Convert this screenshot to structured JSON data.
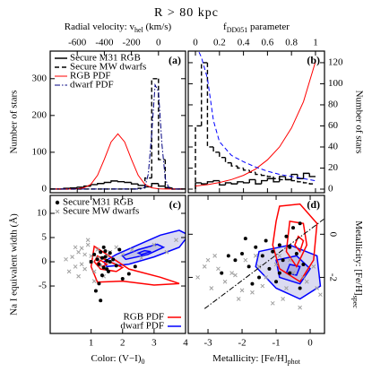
{
  "figure": {
    "title": "R > 80 kpc"
  },
  "chart_data": [
    {
      "type": "histogram",
      "label": "(a)",
      "xlabel": [
        "Radial velocity: v",
        "hel",
        " (km/s)"
      ],
      "xaxis": "top",
      "ylabel": "Number of stars",
      "yaxis": "left",
      "xlim": [
        -800,
        200
      ],
      "xticks": [
        -600,
        -400,
        -200,
        0
      ],
      "ylim": [
        -10,
        375
      ],
      "yticks": [
        0,
        100,
        200,
        300
      ],
      "bins": [
        -800,
        -750,
        -700,
        -650,
        -600,
        -550,
        -500,
        -450,
        -400,
        -350,
        -300,
        -250,
        -200,
        -150,
        -100,
        -50,
        0,
        50,
        100,
        150,
        200
      ],
      "series": [
        {
          "name": "Secure M31 RGB",
          "color": "#000000",
          "style": "solid",
          "counts": [
            0,
            0,
            2,
            3,
            5,
            8,
            12,
            15,
            18,
            22,
            20,
            18,
            14,
            10,
            6,
            15,
            8,
            3,
            0,
            0
          ]
        },
        {
          "name": "Secure MW dwarfs",
          "color": "#000000",
          "style": "dashed",
          "counts": [
            0,
            0,
            0,
            0,
            0,
            0,
            0,
            0,
            0,
            0,
            0,
            0,
            0,
            2,
            30,
            300,
            80,
            4,
            0,
            0
          ]
        }
      ],
      "curves": [
        {
          "name": "RGB PDF",
          "color": "#ff0000",
          "style": "solid",
          "x": [
            -800,
            -750,
            -700,
            -650,
            -600,
            -550,
            -500,
            -450,
            -400,
            -350,
            -300,
            -250,
            -200,
            -150,
            -100,
            -50,
            0,
            50,
            100,
            150,
            200
          ],
          "values": [
            0,
            0,
            0,
            0.1,
            0.6,
            3.3,
            12.7,
            37.4,
            81,
            128,
            150,
            128,
            81,
            37.4,
            12.7,
            3.3,
            0.6,
            0.1,
            0,
            0,
            0
          ]
        },
        {
          "name": "dwarf PDF",
          "color": "#000080",
          "style": "dashdot",
          "x": [
            -800,
            -200,
            -150,
            -125,
            -100,
            -75,
            -50,
            -25,
            0,
            25,
            50,
            75,
            100,
            150,
            200
          ],
          "values": [
            0,
            0,
            0,
            0.4,
            5.5,
            41,
            151,
            283,
            265,
            124,
            29,
            3.3,
            0.2,
            0,
            0
          ]
        }
      ],
      "legend": "upper-left"
    },
    {
      "type": "histogram",
      "label": "(b)",
      "xlabel": [
        "f",
        "DD051",
        " parameter"
      ],
      "xaxis": "top",
      "ylabel": "Number of stars",
      "yaxis": "right",
      "xlim": [
        -0.06,
        1.075
      ],
      "xticks": [
        0,
        0.2,
        0.4,
        0.6,
        0.8,
        1
      ],
      "ylim": [
        -3.4,
        131
      ],
      "yticks": [
        0,
        20,
        40,
        60,
        80,
        100,
        120
      ],
      "bins": [
        0,
        0.05,
        0.1,
        0.15,
        0.2,
        0.25,
        0.3,
        0.35,
        0.4,
        0.45,
        0.5,
        0.55,
        0.6,
        0.65,
        0.7,
        0.75,
        0.8,
        0.85,
        0.9,
        0.95,
        1
      ],
      "series": [
        {
          "color": "#000000",
          "style": "solid",
          "counts": [
            6,
            5,
            7,
            8,
            4,
            6,
            5,
            7,
            6,
            9,
            5,
            8,
            10,
            7,
            12,
            9,
            14,
            10,
            15,
            12
          ]
        },
        {
          "color": "#000000",
          "style": "dashed",
          "counts": [
            60,
            120,
            40,
            35,
            30,
            25,
            22,
            20,
            18,
            16,
            14,
            13,
            12,
            10,
            9,
            9,
            8,
            7,
            6,
            5
          ]
        }
      ],
      "curves": [
        {
          "color": "#ff0000",
          "style": "solid",
          "x": [
            0,
            0.1,
            0.2,
            0.3,
            0.4,
            0.5,
            0.6,
            0.7,
            0.8,
            0.9,
            1
          ],
          "values": [
            3,
            4.3,
            6.3,
            9.1,
            13.1,
            19,
            27.8,
            40,
            58,
            83,
            121
          ]
        },
        {
          "color": "#0000ff",
          "style": "dashed",
          "x": [
            0.03,
            0.05,
            0.1,
            0.15,
            0.2,
            0.3,
            0.4,
            0.5,
            0.6,
            0.7,
            0.8,
            0.9,
            1
          ],
          "values": [
            130,
            125,
            105,
            65,
            45,
            32,
            26,
            21,
            17,
            14,
            12,
            10,
            8
          ]
        }
      ]
    },
    {
      "type": "scatter",
      "label": "(c)",
      "xlabel": [
        "Color: (V−I)",
        "0"
      ],
      "xaxis": "bottom",
      "ylabel": "Na I equivalent width (Å)",
      "yaxis": "left",
      "xlim": [
        -0.3,
        4.0
      ],
      "xticks": [
        1,
        2,
        3,
        4
      ],
      "ylim": [
        -14.8,
        13.7
      ],
      "yticks": [
        -5,
        0,
        5,
        10
      ],
      "series": [
        {
          "name": "Secure M31 RGB",
          "color": "#000000",
          "marker": "dot",
          "x": [
            1.1,
            1.2,
            1.25,
            1.3,
            1.35,
            1.4,
            1.45,
            1.5,
            1.55,
            1.6,
            1.7,
            1.8,
            1.9,
            2.0,
            2.2,
            1.15,
            1.3,
            1.4,
            1.5,
            1.6,
            1.25,
            1.35,
            1.45,
            1.0,
            2.4
          ],
          "y": [
            1.5,
            0.5,
            -0.5,
            2.0,
            0.8,
            -1.2,
            1.0,
            0.2,
            -2.0,
            1.8,
            0.5,
            -0.8,
            2.5,
            -3.5,
            -2.5,
            -6.0,
            -8.0,
            3.0,
            -1.5,
            0.0,
            -4.5,
            -2.8,
            2.2,
            0.0,
            -1.0
          ]
        },
        {
          "name": "Secure MW dwarfs",
          "color": "#a0a0a0",
          "marker": "x",
          "x": [
            0.2,
            0.4,
            0.5,
            0.6,
            0.7,
            0.8,
            0.9,
            1.0,
            1.1,
            1.2,
            0.6,
            0.8,
            1.0,
            1.3,
            1.5,
            0.9,
            0.7,
            1.1,
            1.6,
            1.8,
            2.0,
            2.3,
            2.6,
            3.0,
            3.4,
            3.7,
            0.5,
            0.3,
            1.4,
            1.2
          ],
          "y": [
            0.5,
            1.0,
            -1.0,
            2.0,
            -0.5,
            1.5,
            3.5,
            0.0,
            -2.0,
            2.5,
            -3.0,
            -1.5,
            1.2,
            -0.8,
            1.2,
            4.5,
            2.8,
            -4.0,
            2.0,
            3.0,
            1.5,
            2.5,
            0.8,
            3.5,
            2.0,
            4.5,
            3.0,
            -2.0,
            -3.0,
            0.8
          ]
        }
      ],
      "contours": [
        {
          "color": "#0000ff",
          "x": [
            1.5,
            2.2,
            3.0,
            3.8,
            4.1,
            3.8,
            3.2,
            2.5,
            1.8,
            1.4
          ],
          "y": [
            -1,
            -0.5,
            1,
            3,
            5.5,
            6.5,
            5.5,
            3.5,
            1.5,
            0
          ]
        },
        {
          "color": "#0000ff",
          "x": [
            2.1,
            2.8,
            3.3,
            3.1,
            2.5,
            2.0
          ],
          "y": [
            0.5,
            1.5,
            3,
            3.6,
            2.5,
            1.2
          ]
        },
        {
          "color": "#0000ff",
          "x": [
            2.6,
            2.9,
            2.7,
            2.5
          ],
          "y": [
            1.5,
            2.1,
            2.3,
            1.8
          ]
        },
        {
          "color": "#ff0000",
          "x": [
            1.1,
            1.5,
            2.2,
            3.2,
            3.8,
            3.0,
            2.0,
            1.2,
            1.0
          ],
          "y": [
            3.2,
            1.5,
            -1.5,
            -3.2,
            -4.5,
            -4.8,
            -4,
            -4.2,
            -1
          ]
        },
        {
          "color": "#ff0000",
          "x": [
            1.2,
            1.6,
            2.0,
            1.8,
            1.3,
            1.1
          ],
          "y": [
            1.2,
            0,
            -1.2,
            -2,
            -1.5,
            0
          ]
        },
        {
          "color": "#ff0000",
          "x": [
            1.3,
            1.5,
            1.35,
            1.2
          ],
          "y": [
            0.3,
            -0.5,
            -1,
            -0.3
          ]
        }
      ],
      "legend": "upper-left",
      "legend_lines": [
        {
          "name": "RGB PDF",
          "color": "#ff0000"
        },
        {
          "name": "dwarf PDF",
          "color": "#0000ff"
        }
      ],
      "legend_lines_corner": "lower-right"
    },
    {
      "type": "scatter",
      "label": "(d)",
      "xlabel": [
        "Metallicity: [Fe/H]",
        "phot"
      ],
      "xaxis": "bottom",
      "ylabel": [
        "Metallicity: [Fe/H]",
        "spec"
      ],
      "yaxis": "right",
      "xlim": [
        -3.58,
        0.42
      ],
      "xticks": [
        -3,
        -2,
        -1,
        0
      ],
      "ylim": [
        -4.6,
        1.8
      ],
      "yticks": [
        -2,
        0
      ],
      "series": [
        {
          "color": "#000000",
          "marker": "dot",
          "x": [
            -2.6,
            -2.2,
            -2.0,
            -1.8,
            -1.6,
            -1.5,
            -1.4,
            -1.3,
            -1.2,
            -1.1,
            -1.0,
            -0.9,
            -0.8,
            -0.7,
            -0.6,
            -0.5,
            -0.4,
            -0.3,
            -0.2,
            -1.9,
            -1.7,
            -0.9,
            -0.6,
            -0.3,
            -2.4
          ],
          "y": [
            -1.8,
            -1.2,
            -0.9,
            -1.5,
            -0.6,
            -2.0,
            -1.0,
            -0.3,
            -1.6,
            -0.8,
            -2.2,
            -0.5,
            -1.2,
            -0.1,
            -1.8,
            0.3,
            -0.9,
            -2.5,
            -1.4,
            -0.2,
            -2.3,
            -1.8,
            -0.6,
            0.5,
            -1.0
          ]
        },
        {
          "color": "#a0a0a0",
          "marker": "x",
          "x": [
            -3.3,
            -3.1,
            -2.9,
            -2.8,
            -2.5,
            -2.3,
            -2.1,
            -1.9,
            -1.7,
            -1.5,
            -1.3,
            -1.1,
            -0.9,
            -0.7,
            -0.5,
            -0.3,
            -0.1,
            0.1,
            0.3,
            -2.7,
            -2.0,
            -1.4,
            -0.8,
            -0.2,
            -1.0,
            -0.6,
            -3.0,
            -2.2,
            -1.6,
            0.2
          ],
          "y": [
            -2.0,
            -1.5,
            -2.5,
            -1.0,
            -2.2,
            -1.8,
            -3.0,
            -1.2,
            -2.7,
            -1.5,
            -2.0,
            -3.2,
            -1.0,
            -2.5,
            -1.8,
            -3.4,
            -2.2,
            -1.5,
            -2.8,
            -1.6,
            -2.6,
            -2.4,
            -3.0,
            -2.0,
            -1.4,
            -1.2,
            -1.2,
            -1.9,
            -1.0,
            -2.5
          ]
        }
      ],
      "contours": [
        {
          "color": "#0000ff",
          "x": [
            -1.5,
            -0.6,
            0.2,
            0.3,
            -0.3,
            -1.0,
            -1.6
          ],
          "y": [
            -0.8,
            -0.5,
            -1.0,
            -2.4,
            -3.0,
            -2.5,
            -1.5
          ]
        },
        {
          "color": "#0000ff",
          "x": [
            -1.0,
            -0.4,
            0,
            -0.3,
            -0.9
          ],
          "y": [
            -1.2,
            -1.0,
            -1.6,
            -2.3,
            -2.0
          ]
        },
        {
          "color": "#0000ff",
          "x": [
            -0.6,
            -0.3,
            -0.4,
            -0.7
          ],
          "y": [
            -1.4,
            -1.5,
            -1.9,
            -1.8
          ]
        },
        {
          "color": "#ff0000",
          "x": [
            -0.9,
            -0.3,
            0.2,
            0.1,
            -0.3,
            -0.9,
            -1.1,
            -1.0
          ],
          "y": [
            1.3,
            1.4,
            0.5,
            -1.2,
            -2.2,
            -1.6,
            -0.5,
            0.6
          ]
        },
        {
          "color": "#ff0000",
          "x": [
            -0.6,
            -0.2,
            -0.1,
            -0.4,
            -0.7
          ],
          "y": [
            0.6,
            0.5,
            -0.5,
            -1.5,
            -0.8
          ]
        },
        {
          "color": "#ff0000",
          "x": [
            -0.35,
            -0.2,
            -0.3,
            -0.45
          ],
          "y": [
            -0.1,
            -0.3,
            -0.8,
            -0.5
          ]
        }
      ],
      "lines": [
        {
          "color": "#000000",
          "style": "dashdot",
          "x": [
            -3.1,
            0.4
          ],
          "y": [
            -3.45,
            0.7
          ]
        }
      ]
    }
  ]
}
